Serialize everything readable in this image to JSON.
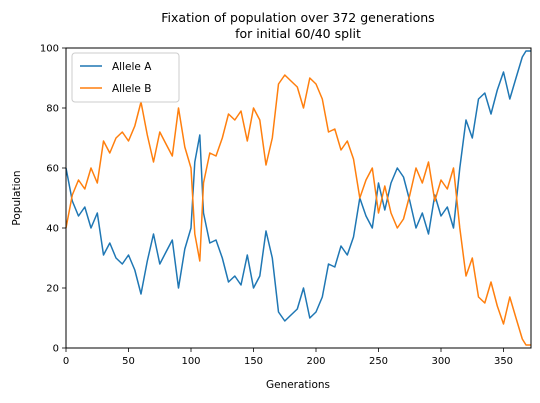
{
  "chart_data": {
    "type": "line",
    "title": "Fixation of population over 372 generations",
    "subtitle": "for initial 60/40 split",
    "xlabel": "Generations",
    "ylabel": "Population",
    "xlim": [
      0,
      372
    ],
    "ylim": [
      0,
      100
    ],
    "xticks": [
      0,
      50,
      100,
      150,
      200,
      250,
      300,
      350
    ],
    "yticks": [
      0,
      20,
      40,
      60,
      80,
      100
    ],
    "grid": false,
    "legend_position": "upper-left",
    "series": [
      {
        "name": "Allele A",
        "color": "#1f77b4",
        "x": [
          0,
          5,
          10,
          15,
          20,
          25,
          30,
          35,
          40,
          45,
          50,
          55,
          60,
          65,
          70,
          75,
          80,
          85,
          90,
          95,
          100,
          103,
          107,
          110,
          115,
          120,
          125,
          130,
          135,
          140,
          145,
          150,
          155,
          160,
          165,
          170,
          175,
          180,
          185,
          190,
          195,
          200,
          205,
          210,
          215,
          220,
          225,
          230,
          235,
          240,
          245,
          250,
          255,
          260,
          265,
          270,
          275,
          280,
          285,
          290,
          295,
          300,
          305,
          310,
          315,
          320,
          325,
          330,
          335,
          340,
          345,
          350,
          355,
          360,
          365,
          368,
          372
        ],
        "values": [
          60,
          49,
          44,
          47,
          40,
          45,
          31,
          35,
          30,
          28,
          31,
          26,
          18,
          29,
          38,
          28,
          32,
          36,
          20,
          33,
          40,
          62,
          71,
          45,
          35,
          36,
          30,
          22,
          24,
          21,
          31,
          20,
          24,
          39,
          30,
          12,
          9,
          11,
          13,
          20,
          10,
          12,
          17,
          28,
          27,
          34,
          31,
          37,
          50,
          44,
          40,
          55,
          46,
          55,
          60,
          57,
          49,
          40,
          45,
          38,
          51,
          44,
          47,
          40,
          60,
          76,
          70,
          83,
          85,
          78,
          86,
          92,
          83,
          90,
          97,
          99,
          99
        ]
      },
      {
        "name": "Allele B",
        "color": "#ff7f0e",
        "x": [
          0,
          5,
          10,
          15,
          20,
          25,
          30,
          35,
          40,
          45,
          50,
          55,
          60,
          65,
          70,
          75,
          80,
          85,
          90,
          95,
          100,
          103,
          107,
          110,
          115,
          120,
          125,
          130,
          135,
          140,
          145,
          150,
          155,
          160,
          165,
          170,
          175,
          180,
          185,
          190,
          195,
          200,
          205,
          210,
          215,
          220,
          225,
          230,
          235,
          240,
          245,
          250,
          255,
          260,
          265,
          270,
          275,
          280,
          285,
          290,
          295,
          300,
          305,
          310,
          315,
          320,
          325,
          330,
          335,
          340,
          345,
          350,
          355,
          360,
          365,
          368,
          372
        ],
        "values": [
          40,
          51,
          56,
          53,
          60,
          55,
          69,
          65,
          70,
          72,
          69,
          74,
          82,
          71,
          62,
          72,
          68,
          64,
          80,
          67,
          60,
          38,
          29,
          55,
          65,
          64,
          70,
          78,
          76,
          79,
          69,
          80,
          76,
          61,
          70,
          88,
          91,
          89,
          87,
          80,
          90,
          88,
          83,
          72,
          73,
          66,
          69,
          63,
          50,
          56,
          60,
          45,
          54,
          45,
          40,
          43,
          51,
          60,
          55,
          62,
          49,
          56,
          53,
          60,
          40,
          24,
          30,
          17,
          15,
          22,
          14,
          8,
          17,
          10,
          3,
          1,
          1
        ]
      }
    ]
  }
}
